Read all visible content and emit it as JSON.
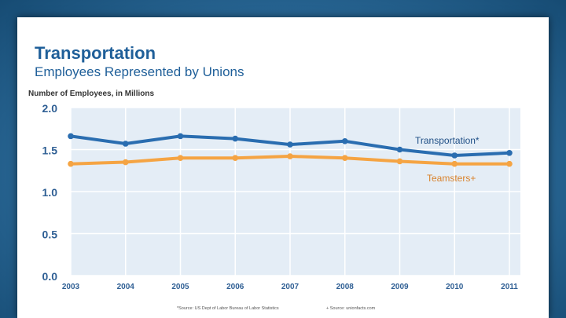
{
  "slide": {
    "title": "Transportation",
    "subtitle": "Employees Represented by Unions",
    "footnote_left": "*Source: US Dept of Labor Bureau of Labor Statistics",
    "footnote_right": "+ Source: unionfacts.com"
  },
  "colors": {
    "transportation": "#2a6db0",
    "teamsters": "#f5a443",
    "tick_label": "#2f5f94",
    "plot_background": "#e4edf6"
  },
  "chart_data": {
    "type": "line",
    "title": "",
    "xlabel": "",
    "ylabel": "Number of Employees, in Millions",
    "x": [
      "2003",
      "2004",
      "2005",
      "2006",
      "2007",
      "2008",
      "2009",
      "2010",
      "2011"
    ],
    "yticks": [
      "0.0",
      "0.5",
      "1.0",
      "1.5",
      "2.0"
    ],
    "ylim": [
      0,
      2.0
    ],
    "grid": true,
    "legend": "inline labels at right",
    "series": [
      {
        "name": "Transportation*",
        "values": [
          1.66,
          1.57,
          1.66,
          1.63,
          1.56,
          1.6,
          1.5,
          1.43,
          1.46
        ]
      },
      {
        "name": "Teamsters+",
        "values": [
          1.33,
          1.35,
          1.4,
          1.4,
          1.42,
          1.4,
          1.36,
          1.33,
          1.33
        ]
      }
    ]
  }
}
